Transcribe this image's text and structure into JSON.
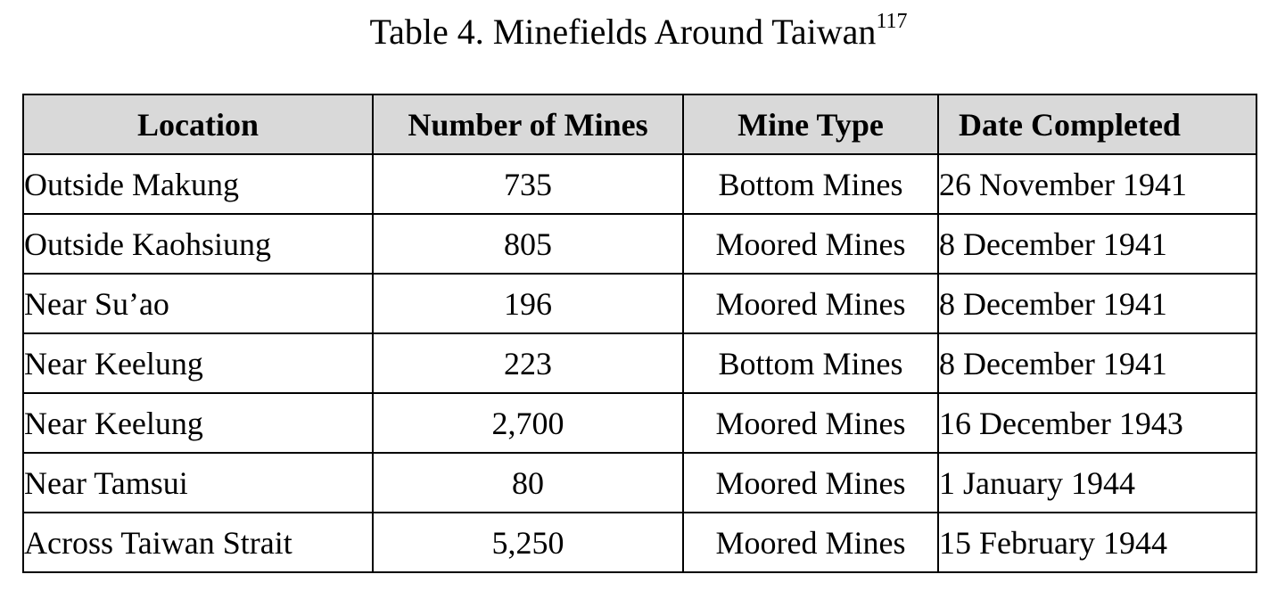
{
  "caption": {
    "text": "Table 4. Minefields Around Taiwan",
    "footnote": "117"
  },
  "table": {
    "headers": [
      "Location",
      "Number of Mines",
      "Mine Type",
      "Date Completed"
    ],
    "rows": [
      {
        "location": "Outside Makung",
        "mines": "735",
        "type": "Bottom Mines",
        "date": "26 November 1941"
      },
      {
        "location": "Outside Kaohsiung",
        "mines": "805",
        "type": "Moored Mines",
        "date": "8 December 1941"
      },
      {
        "location": "Near Su’ao",
        "mines": "196",
        "type": "Moored Mines",
        "date": "8 December 1941"
      },
      {
        "location": "Near Keelung",
        "mines": "223",
        "type": "Bottom Mines",
        "date": "8 December 1941"
      },
      {
        "location": "Near Keelung",
        "mines": "2,700",
        "type": "Moored Mines",
        "date": "16 December 1943"
      },
      {
        "location": "Near Tamsui",
        "mines": "80",
        "type": "Moored Mines",
        "date": "1 January 1944"
      },
      {
        "location": "Across Taiwan Strait",
        "mines": "5,250",
        "type": "Moored Mines",
        "date": "15 February 1944"
      }
    ]
  }
}
